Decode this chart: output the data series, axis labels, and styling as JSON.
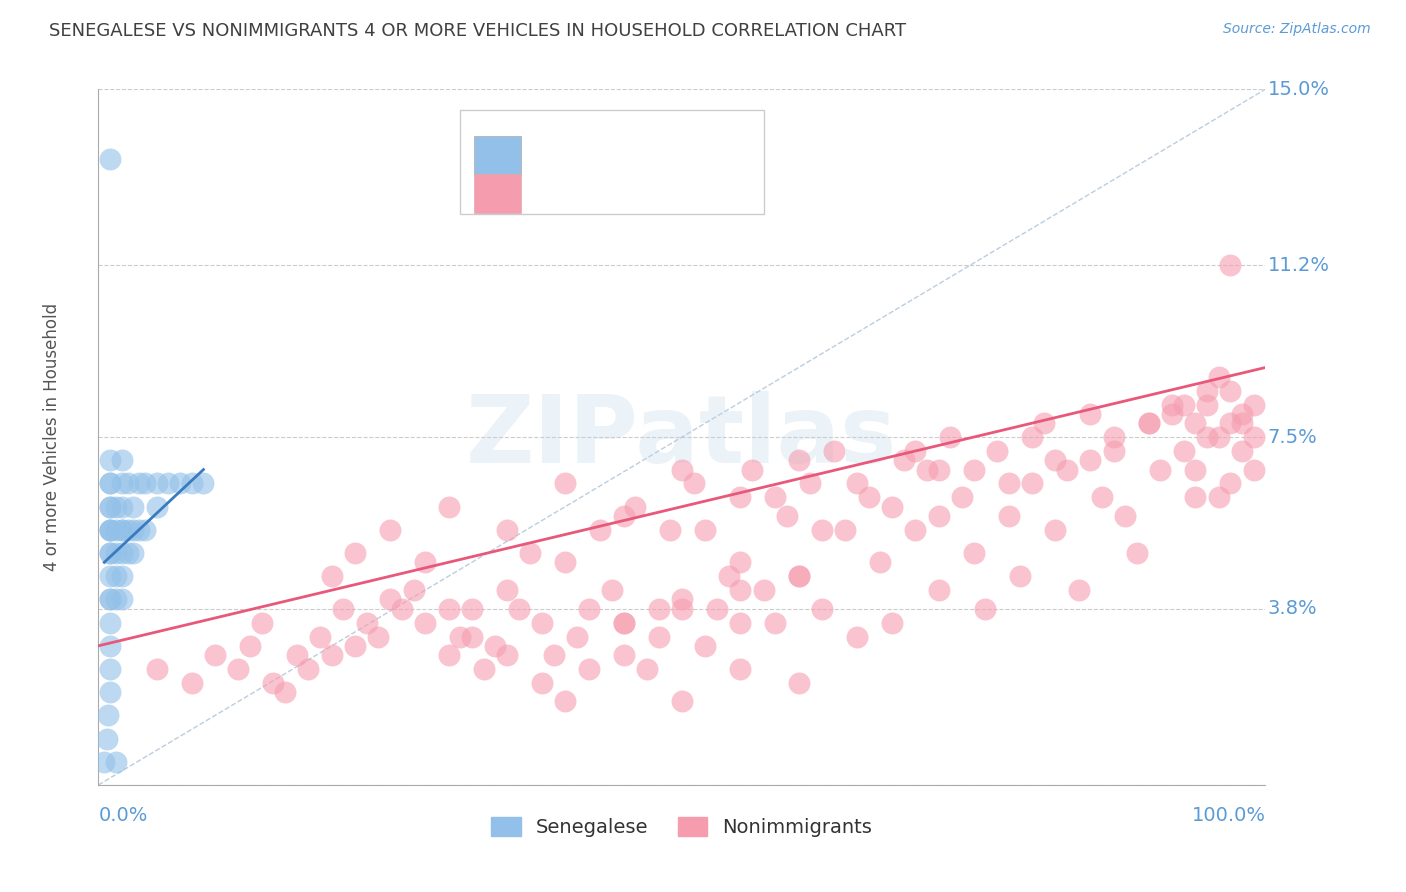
{
  "title": "SENEGALESE VS NONIMMIGRANTS 4 OR MORE VEHICLES IN HOUSEHOLD CORRELATION CHART",
  "source": "Source: ZipAtlas.com",
  "ylabel": "4 or more Vehicles in Household",
  "xlim": [
    0.0,
    1.0
  ],
  "ylim": [
    0.0,
    0.15
  ],
  "yticks": [
    0.0,
    0.038,
    0.075,
    0.112,
    0.15
  ],
  "ytick_labels": [
    "",
    "3.8%",
    "7.5%",
    "11.2%",
    "15.0%"
  ],
  "xtick_labels": [
    "0.0%",
    "100.0%"
  ],
  "blue_color": "#92c0e8",
  "pink_color": "#f59daf",
  "blue_line_color": "#3a7bbf",
  "pink_line_color": "#e8587a",
  "diagonal_color": "#a0b8d0",
  "watermark": "ZIPatlas",
  "background_color": "#ffffff",
  "grid_color": "#cccccc",
  "title_color": "#404040",
  "axis_label_color": "#5b9bd5",
  "legend_text_color": "#5b9bd5",
  "legend_label_color": "#333333",
  "blue_x": [
    0.005,
    0.007,
    0.008,
    0.01,
    0.01,
    0.01,
    0.01,
    0.01,
    0.01,
    0.01,
    0.01,
    0.01,
    0.01,
    0.01,
    0.01,
    0.01,
    0.01,
    0.01,
    0.01,
    0.01,
    0.015,
    0.015,
    0.015,
    0.015,
    0.015,
    0.02,
    0.02,
    0.02,
    0.02,
    0.02,
    0.02,
    0.02,
    0.02,
    0.025,
    0.025,
    0.025,
    0.03,
    0.03,
    0.03,
    0.035,
    0.035,
    0.04,
    0.04,
    0.05,
    0.05,
    0.06,
    0.07,
    0.08,
    0.09,
    0.01,
    0.015
  ],
  "blue_y": [
    0.005,
    0.01,
    0.015,
    0.02,
    0.025,
    0.03,
    0.035,
    0.04,
    0.04,
    0.045,
    0.05,
    0.05,
    0.055,
    0.055,
    0.055,
    0.06,
    0.06,
    0.065,
    0.065,
    0.07,
    0.04,
    0.045,
    0.05,
    0.055,
    0.06,
    0.04,
    0.045,
    0.05,
    0.055,
    0.055,
    0.06,
    0.065,
    0.07,
    0.05,
    0.055,
    0.065,
    0.05,
    0.055,
    0.06,
    0.055,
    0.065,
    0.055,
    0.065,
    0.06,
    0.065,
    0.065,
    0.065,
    0.065,
    0.065,
    0.135,
    0.005
  ],
  "pink_x": [
    0.05,
    0.08,
    0.1,
    0.12,
    0.13,
    0.14,
    0.15,
    0.16,
    0.17,
    0.18,
    0.19,
    0.2,
    0.21,
    0.22,
    0.23,
    0.24,
    0.25,
    0.26,
    0.27,
    0.28,
    0.3,
    0.31,
    0.32,
    0.33,
    0.34,
    0.35,
    0.36,
    0.37,
    0.38,
    0.39,
    0.4,
    0.41,
    0.42,
    0.43,
    0.44,
    0.45,
    0.46,
    0.47,
    0.48,
    0.49,
    0.5,
    0.51,
    0.52,
    0.53,
    0.54,
    0.55,
    0.56,
    0.57,
    0.58,
    0.59,
    0.6,
    0.61,
    0.62,
    0.63,
    0.64,
    0.65,
    0.66,
    0.67,
    0.68,
    0.69,
    0.7,
    0.71,
    0.72,
    0.73,
    0.74,
    0.75,
    0.76,
    0.77,
    0.78,
    0.79,
    0.8,
    0.81,
    0.82,
    0.83,
    0.84,
    0.85,
    0.86,
    0.87,
    0.88,
    0.89,
    0.9,
    0.91,
    0.92,
    0.93,
    0.94,
    0.95,
    0.96,
    0.97,
    0.98,
    0.99,
    0.99,
    0.99,
    0.98,
    0.98,
    0.97,
    0.97,
    0.96,
    0.96,
    0.95,
    0.95,
    0.94,
    0.94,
    0.93,
    0.2,
    0.22,
    0.25,
    0.28,
    0.3,
    0.32,
    0.35,
    0.38,
    0.4,
    0.42,
    0.45,
    0.48,
    0.5,
    0.55,
    0.6,
    0.3,
    0.35,
    0.4,
    0.45,
    0.5,
    0.55,
    0.6,
    0.65,
    0.7,
    0.75,
    0.8,
    0.85,
    0.9,
    0.55,
    0.62,
    0.68,
    0.72,
    0.52,
    0.58,
    0.72,
    0.78,
    0.82,
    0.87,
    0.92,
    0.97,
    0.45,
    0.5,
    0.55,
    0.6
  ],
  "pink_y": [
    0.025,
    0.022,
    0.028,
    0.025,
    0.03,
    0.035,
    0.022,
    0.02,
    0.028,
    0.025,
    0.032,
    0.028,
    0.038,
    0.03,
    0.035,
    0.032,
    0.04,
    0.038,
    0.042,
    0.035,
    0.028,
    0.032,
    0.038,
    0.025,
    0.03,
    0.042,
    0.038,
    0.05,
    0.035,
    0.028,
    0.048,
    0.032,
    0.038,
    0.055,
    0.042,
    0.035,
    0.06,
    0.025,
    0.038,
    0.055,
    0.04,
    0.065,
    0.03,
    0.038,
    0.045,
    0.025,
    0.068,
    0.042,
    0.035,
    0.058,
    0.045,
    0.065,
    0.038,
    0.072,
    0.055,
    0.032,
    0.062,
    0.048,
    0.035,
    0.07,
    0.055,
    0.068,
    0.042,
    0.075,
    0.062,
    0.05,
    0.038,
    0.072,
    0.058,
    0.045,
    0.065,
    0.078,
    0.055,
    0.068,
    0.042,
    0.08,
    0.062,
    0.072,
    0.058,
    0.05,
    0.078,
    0.068,
    0.082,
    0.072,
    0.062,
    0.085,
    0.075,
    0.065,
    0.078,
    0.082,
    0.075,
    0.068,
    0.08,
    0.072,
    0.085,
    0.078,
    0.062,
    0.088,
    0.082,
    0.075,
    0.068,
    0.078,
    0.082,
    0.045,
    0.05,
    0.055,
    0.048,
    0.038,
    0.032,
    0.028,
    0.022,
    0.018,
    0.025,
    0.028,
    0.032,
    0.018,
    0.035,
    0.022,
    0.06,
    0.055,
    0.065,
    0.058,
    0.068,
    0.062,
    0.07,
    0.065,
    0.072,
    0.068,
    0.075,
    0.07,
    0.078,
    0.048,
    0.055,
    0.06,
    0.068,
    0.055,
    0.062,
    0.058,
    0.065,
    0.07,
    0.075,
    0.08,
    0.112,
    0.035,
    0.038,
    0.042,
    0.045
  ]
}
